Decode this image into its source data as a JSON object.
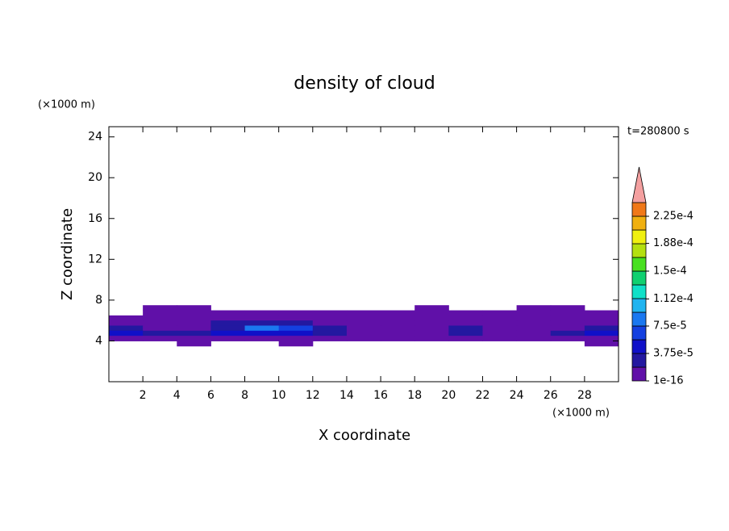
{
  "chart_data": {
    "type": "contour",
    "title": "density of cloud",
    "x_label": "X coordinate",
    "y_label": "Z coordinate",
    "x_unit": "(×1000 m)",
    "y_unit": "(×1000 m)",
    "annotation": "t=280800 s",
    "xlim": [
      0,
      30
    ],
    "xticks": [
      2,
      4,
      6,
      8,
      10,
      12,
      14,
      16,
      18,
      20,
      22,
      24,
      26,
      28
    ],
    "ylim": [
      0,
      25
    ],
    "yticks": [
      4,
      8,
      12,
      16,
      20,
      24
    ],
    "x": [
      1,
      3,
      5,
      7,
      9,
      11,
      13,
      15,
      17,
      19,
      21,
      23,
      25,
      27,
      29
    ],
    "z": [
      7.25,
      6.75,
      6.25,
      5.75,
      5.25,
      4.75,
      4.25,
      3.75
    ],
    "values": [
      [
        null,
        5e-06,
        5e-06,
        null,
        null,
        null,
        null,
        null,
        null,
        5e-06,
        null,
        null,
        5e-06,
        5e-06,
        null
      ],
      [
        null,
        5e-06,
        5e-06,
        5e-06,
        5e-06,
        5e-06,
        5e-06,
        5e-06,
        5e-06,
        5e-06,
        5e-06,
        5e-06,
        5e-06,
        5e-06,
        5e-06
      ],
      [
        5e-06,
        5e-06,
        5e-06,
        5e-06,
        5e-06,
        5e-06,
        5e-06,
        5e-06,
        5e-06,
        5e-06,
        5e-06,
        5e-06,
        5e-06,
        5e-06,
        5e-06
      ],
      [
        5e-06,
        5e-06,
        5e-06,
        2e-05,
        2e-05,
        2e-05,
        5e-06,
        5e-06,
        5e-06,
        5e-06,
        5e-06,
        5e-06,
        5e-06,
        5e-06,
        5e-06
      ],
      [
        2.5e-05,
        5e-06,
        5e-06,
        2.5e-05,
        8e-05,
        6e-05,
        2.5e-05,
        5e-06,
        5e-06,
        5e-06,
        2e-05,
        5e-06,
        5e-06,
        5e-06,
        2.5e-05
      ],
      [
        4e-05,
        2.5e-05,
        3e-05,
        5e-05,
        5e-05,
        4e-05,
        2.5e-05,
        5e-06,
        5e-06,
        5e-06,
        2.5e-05,
        5e-06,
        5e-06,
        2.5e-05,
        4.5e-05
      ],
      [
        5e-06,
        5e-06,
        5e-06,
        5e-06,
        5e-06,
        5e-06,
        5e-06,
        5e-06,
        5e-06,
        5e-06,
        5e-06,
        5e-06,
        5e-06,
        5e-06,
        5e-06
      ],
      [
        null,
        null,
        5e-06,
        null,
        null,
        5e-06,
        null,
        null,
        null,
        null,
        null,
        null,
        null,
        null,
        5e-06
      ]
    ],
    "colorbar": {
      "lim": [
        0,
        0.00024375
      ],
      "colors": [
        "#6010a8",
        "#2318a0",
        "#1010c8",
        "#1440e0",
        "#1a78f0",
        "#20b4f0",
        "#10e0c8",
        "#10d070",
        "#48e020",
        "#b4e010",
        "#f0f010",
        "#f0b010",
        "#f07818"
      ],
      "extend_color": "#f4a0a0",
      "ticks": [
        {
          "value": 1e-16,
          "label": "1e-16"
        },
        {
          "value": 3.75e-05,
          "label": "3.75e-5"
        },
        {
          "value": 7.5e-05,
          "label": "7.5e-5"
        },
        {
          "value": 0.000112,
          "label": "1.12e-4"
        },
        {
          "value": 0.00015,
          "label": "1.5e-4"
        },
        {
          "value": 0.000188,
          "label": "1.88e-4"
        },
        {
          "value": 0.000225,
          "label": "2.25e-4"
        }
      ]
    }
  }
}
